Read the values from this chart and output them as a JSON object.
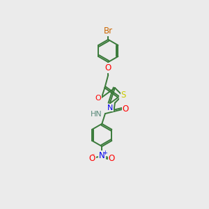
{
  "background_color": "#ebebeb",
  "bond_color": "#3a7a3a",
  "atom_colors": {
    "Br": "#cc6600",
    "O": "#ff0000",
    "N": "#0000ee",
    "S": "#cccc00",
    "H": "#5a8a7a",
    "C": "#3a7a3a"
  },
  "lw": 1.4,
  "benzene_r": 21,
  "oxadiazole_r": 16
}
